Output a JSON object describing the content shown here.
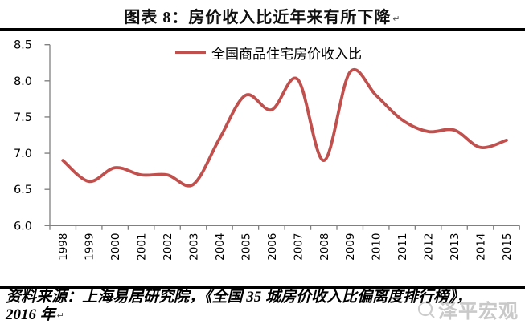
{
  "header": {
    "title": "图表 8：房价收入比近年来有所下降",
    "return_mark": "↵"
  },
  "legend": {
    "label": "全国商品住宅房价收入比"
  },
  "source": {
    "line1": "资料来源：上海易居研究院，《全国 35 城房价收入比偏离度排行榜》，",
    "line2": "2016 年",
    "return_mark": "↵"
  },
  "watermark": {
    "text": "泽平宏观"
  },
  "chart_data": {
    "type": "line",
    "title": "图表 8：房价收入比近年来有所下降",
    "categories": [
      "1998",
      "1999",
      "2000",
      "2001",
      "2002",
      "2003",
      "2004",
      "2005",
      "2006",
      "2007",
      "2008",
      "2009",
      "2010",
      "2011",
      "2012",
      "2013",
      "2014",
      "2015"
    ],
    "series": [
      {
        "name": "全国商品住宅房价收入比",
        "values": [
          6.9,
          6.61,
          6.8,
          6.7,
          6.7,
          6.57,
          7.2,
          7.8,
          7.6,
          8.02,
          6.9,
          8.12,
          7.8,
          7.46,
          7.3,
          7.32,
          7.08,
          7.18
        ]
      }
    ],
    "xlabel": "",
    "ylabel": "",
    "ylim": [
      6.0,
      8.5
    ],
    "yticks": [
      6.0,
      6.5,
      7.0,
      7.5,
      8.0,
      8.5
    ],
    "grid": false,
    "smooth": true,
    "legend_position": "top-center",
    "line_color": "#C0504D",
    "axis_color": "#808080"
  }
}
